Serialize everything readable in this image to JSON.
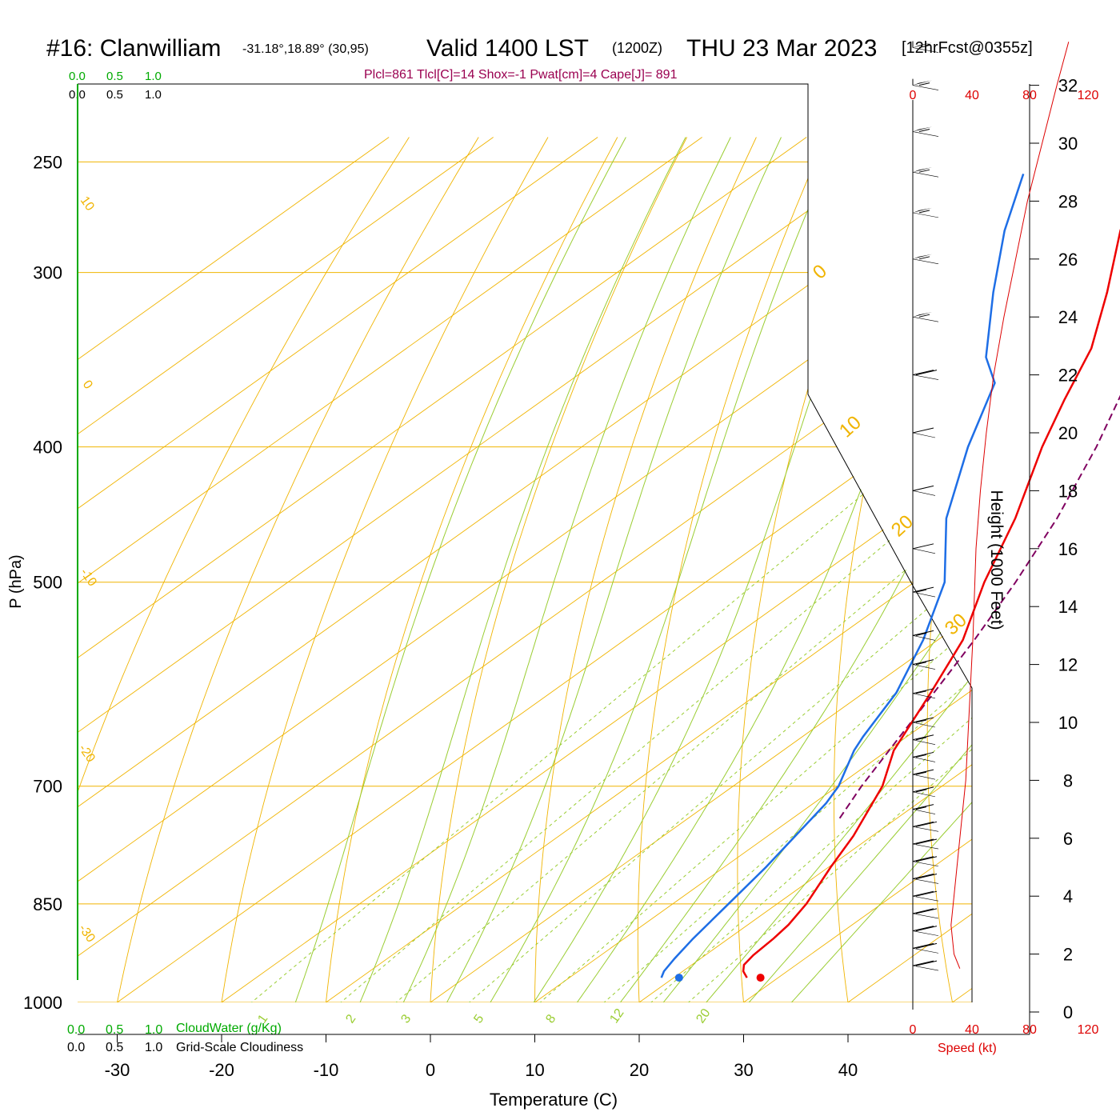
{
  "header": {
    "station": "#16: Clanwilliam",
    "coords": "-31.18°,18.89° (30,95)",
    "valid": "Valid 1400 LST",
    "zulu": "(1200Z)",
    "date": "THU 23 Mar 2023",
    "forecast": "[12hrFcst@0355z]",
    "indices": "Plcl=861 Tlcl[C]=14 Shox=-1 Pwat[cm]=4 Cape[J]= 891"
  },
  "scales": {
    "cloudwater_ticks_top": [
      "0.0",
      "0.5",
      "1.0"
    ],
    "cloudiness_ticks_top": [
      "0.0",
      "0.5",
      "1.0"
    ],
    "cloudwater_ticks_bottom": [
      "0.0",
      "0.5",
      "1.0"
    ],
    "cloudiness_ticks_bottom": [
      "0.0",
      "0.5",
      "1.0"
    ],
    "cloudwater_label": "CloudWater (g/Kg)",
    "cloudiness_label": "Grid-Scale Cloudiness",
    "speed_label": "Speed (kt)"
  },
  "colors": {
    "isotherm": "#f0b400",
    "dry_adiabat": "#f0b400",
    "moist_adiabat": "#9acd32",
    "mixing_ratio": "#9acd32",
    "temperature": "#ee0000",
    "dewpoint": "#1e6ee6",
    "parcel": "#800060",
    "cloud_axis": "#00aa00",
    "speed": "#dd0000"
  },
  "chart_data": {
    "type": "skew-t",
    "xlabel": "Temperature (C)",
    "ylabel": "P (hPa)",
    "height_label": "Height (1000 Feet)",
    "x_ticks": [
      -30,
      -20,
      -10,
      0,
      10,
      20,
      30,
      40
    ],
    "pressure_ticks": [
      250,
      300,
      400,
      500,
      700,
      850,
      1000
    ],
    "height_ticks": [
      0,
      2,
      4,
      6,
      8,
      10,
      12,
      14,
      16,
      18,
      20,
      22,
      24,
      26,
      28,
      30,
      32
    ],
    "speed_ticks": [
      "0",
      "40",
      "80",
      "120"
    ],
    "isotherm_labels": [
      "10",
      "0",
      "-10",
      "-20",
      "-30"
    ],
    "right_isotherm_labels": [
      "0",
      "10",
      "20",
      "30"
    ],
    "mixing_ratio_labels": [
      "1",
      "2",
      "3",
      "5",
      "8",
      "12",
      "20"
    ],
    "temperature_profile": [
      {
        "p": 960,
        "t": 27.0
      },
      {
        "p": 950,
        "t": 25.8
      },
      {
        "p": 940,
        "t": 25.0
      },
      {
        "p": 925,
        "t": 24.6
      },
      {
        "p": 900,
        "t": 24.3
      },
      {
        "p": 880,
        "t": 23.9
      },
      {
        "p": 850,
        "t": 22.8
      },
      {
        "p": 800,
        "t": 20.2
      },
      {
        "p": 760,
        "t": 18.2
      },
      {
        "p": 700,
        "t": 14.3
      },
      {
        "p": 660,
        "t": 10.6
      },
      {
        "p": 600,
        "t": 6.4
      },
      {
        "p": 550,
        "t": 2.4
      },
      {
        "p": 500,
        "t": -3.3
      },
      {
        "p": 450,
        "t": -8.9
      },
      {
        "p": 400,
        "t": -15.9
      },
      {
        "p": 370,
        "t": -20.1
      },
      {
        "p": 340,
        "t": -24.4
      },
      {
        "p": 310,
        "t": -30.4
      },
      {
        "p": 280,
        "t": -37.4
      },
      {
        "p": 255,
        "t": -43.0
      }
    ],
    "dewpoint_profile": [
      {
        "p": 960,
        "t": 18.8
      },
      {
        "p": 950,
        "t": 18.2
      },
      {
        "p": 930,
        "t": 17.5
      },
      {
        "p": 900,
        "t": 16.6
      },
      {
        "p": 860,
        "t": 15.6
      },
      {
        "p": 800,
        "t": 14.0
      },
      {
        "p": 720,
        "t": 11.2
      },
      {
        "p": 700,
        "t": 10.1
      },
      {
        "p": 660,
        "t": 6.8
      },
      {
        "p": 645,
        "t": 5.8
      },
      {
        "p": 600,
        "t": 3.1
      },
      {
        "p": 550,
        "t": -1.4
      },
      {
        "p": 500,
        "t": -7.1
      },
      {
        "p": 450,
        "t": -15.5
      },
      {
        "p": 400,
        "t": -23.0
      },
      {
        "p": 360,
        "t": -29.0
      },
      {
        "p": 345,
        "t": -33.3
      },
      {
        "p": 310,
        "t": -41.3
      },
      {
        "p": 280,
        "t": -48.5
      },
      {
        "p": 255,
        "t": -54.3
      }
    ],
    "parcel_profile": [
      {
        "p": 738,
        "t": 14.5
      },
      {
        "p": 700,
        "t": 12.3
      },
      {
        "p": 650,
        "t": 9.6
      },
      {
        "p": 600,
        "t": 6.7
      },
      {
        "p": 550,
        "t": 3.5
      },
      {
        "p": 500,
        "t": -0.3
      },
      {
        "p": 450,
        "t": -4.9
      },
      {
        "p": 400,
        "t": -10.7
      },
      {
        "p": 350,
        "t": -17.9
      },
      {
        "p": 300,
        "t": -27.2
      },
      {
        "p": 255,
        "t": -37.6
      }
    ],
    "surface_temperature": 28.3,
    "surface_dewpoint": 20.5,
    "wind_speed_profile": [
      {
        "h": 1.5,
        "v": 32
      },
      {
        "h": 2.0,
        "v": 28
      },
      {
        "h": 3.0,
        "v": 26
      },
      {
        "h": 4.0,
        "v": 28
      },
      {
        "h": 6.0,
        "v": 32
      },
      {
        "h": 8.0,
        "v": 36
      },
      {
        "h": 10.0,
        "v": 38
      },
      {
        "h": 13.0,
        "v": 41
      },
      {
        "h": 16.0,
        "v": 43
      },
      {
        "h": 18.0,
        "v": 46
      },
      {
        "h": 20.0,
        "v": 50
      },
      {
        "h": 22.0,
        "v": 55
      },
      {
        "h": 24.0,
        "v": 62
      },
      {
        "h": 26.0,
        "v": 70
      },
      {
        "h": 28.0,
        "v": 78
      },
      {
        "h": 30.0,
        "v": 88
      },
      {
        "h": 32.0,
        "v": 98
      },
      {
        "h": 33.5,
        "v": 106
      }
    ],
    "wind_barbs": [
      {
        "h": 1.6,
        "v": 20
      },
      {
        "h": 2.2,
        "v": 20
      },
      {
        "h": 2.8,
        "v": 20
      },
      {
        "h": 3.4,
        "v": 20
      },
      {
        "h": 4.0,
        "v": 20
      },
      {
        "h": 4.6,
        "v": 20
      },
      {
        "h": 5.2,
        "v": 20
      },
      {
        "h": 5.8,
        "v": 20
      },
      {
        "h": 6.4,
        "v": 20
      },
      {
        "h": 7.0,
        "v": 15
      },
      {
        "h": 7.6,
        "v": 15
      },
      {
        "h": 8.2,
        "v": 15
      },
      {
        "h": 8.8,
        "v": 15
      },
      {
        "h": 9.4,
        "v": 15
      },
      {
        "h": 10.0,
        "v": 15
      },
      {
        "h": 11.0,
        "v": 15
      },
      {
        "h": 12.0,
        "v": 15
      },
      {
        "h": 13.0,
        "v": 15
      },
      {
        "h": 14.5,
        "v": 15
      },
      {
        "h": 16.0,
        "v": 10
      },
      {
        "h": 18.0,
        "v": 10
      },
      {
        "h": 20.0,
        "v": 10
      },
      {
        "h": 22.0,
        "v": 20
      },
      {
        "h": 24.0,
        "v": 55
      },
      {
        "h": 26.0,
        "v": 55
      },
      {
        "h": 27.6,
        "v": 55
      },
      {
        "h": 29.0,
        "v": 55
      },
      {
        "h": 30.4,
        "v": 55
      },
      {
        "h": 32.0,
        "v": 55
      },
      {
        "h": 33.3,
        "v": 55
      }
    ]
  }
}
